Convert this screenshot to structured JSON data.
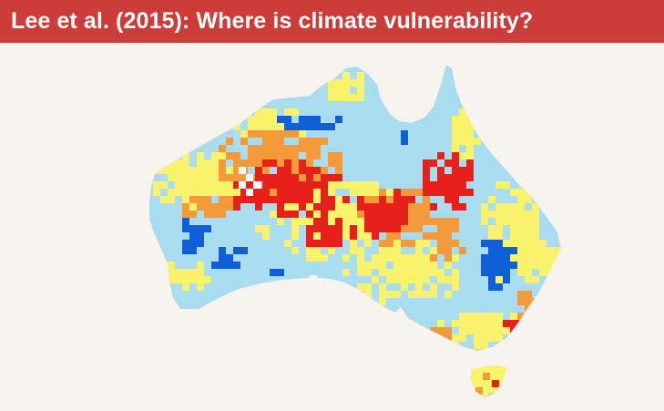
{
  "slide": {
    "title": "Lee et al. (2015): Where is climate vulnerability?"
  },
  "map": {
    "region": "Australia",
    "legend_shown": false,
    "category_colors": {
      "strong_blue": "#0f5fd8",
      "light_blue": "#a9dcef",
      "yellow": "#f8f36a",
      "orange": "#f59a3a",
      "red": "#e8201c",
      "white": "#ffffff"
    },
    "banner_color": "#cc3d3a",
    "background_color": "#f7f3ee"
  }
}
